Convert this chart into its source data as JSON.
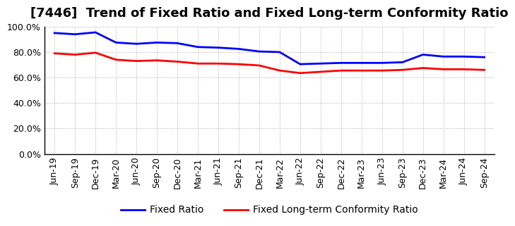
{
  "title": "[7446]  Trend of Fixed Ratio and Fixed Long-term Conformity Ratio",
  "labels": [
    "Jun-19",
    "Sep-19",
    "Dec-19",
    "Mar-20",
    "Jun-20",
    "Sep-20",
    "Dec-20",
    "Mar-21",
    "Jun-21",
    "Sep-21",
    "Dec-21",
    "Mar-22",
    "Jun-22",
    "Sep-22",
    "Dec-22",
    "Mar-23",
    "Jun-23",
    "Sep-23",
    "Dec-23",
    "Mar-24",
    "Jun-24",
    "Sep-24"
  ],
  "fixed_ratio": [
    95.0,
    94.0,
    95.5,
    87.5,
    86.5,
    87.5,
    87.0,
    84.0,
    83.5,
    82.5,
    80.5,
    80.0,
    70.5,
    71.0,
    71.5,
    71.5,
    71.5,
    72.0,
    78.0,
    76.5,
    76.5,
    76.0
  ],
  "fixed_lt_ratio": [
    79.0,
    78.0,
    79.5,
    74.0,
    73.0,
    73.5,
    72.5,
    71.0,
    71.0,
    70.5,
    69.5,
    65.5,
    63.5,
    64.5,
    65.5,
    65.5,
    65.5,
    66.0,
    67.5,
    66.5,
    66.5,
    66.0
  ],
  "fixed_ratio_color": "#0000FF",
  "fixed_lt_ratio_color": "#FF0000",
  "ylim": [
    0,
    100
  ],
  "yticks": [
    0,
    20,
    40,
    60,
    80,
    100
  ],
  "ytick_labels": [
    "0.0%",
    "20.0%",
    "40.0%",
    "60.0%",
    "80.0%",
    "100.0%"
  ],
  "background_color": "#FFFFFF",
  "grid_color": "#AAAAAA",
  "line_width": 2.0,
  "legend_fixed_ratio": "Fixed Ratio",
  "legend_fixed_lt_ratio": "Fixed Long-term Conformity Ratio",
  "title_fontsize": 13,
  "tick_fontsize": 9,
  "legend_fontsize": 10
}
